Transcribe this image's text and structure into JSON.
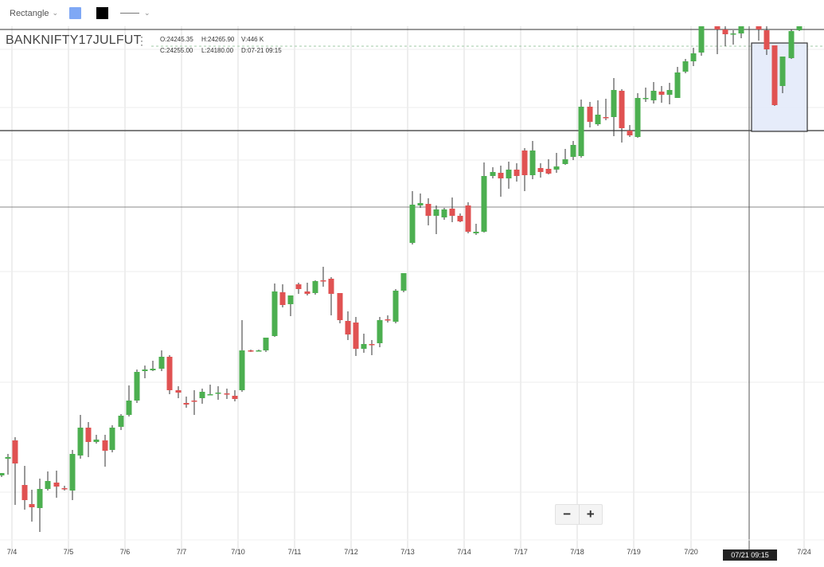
{
  "toolbar": {
    "shape_label": "Rectangle",
    "fill_color": "#7fa8f5",
    "stroke_color": "#000000"
  },
  "symbol": "BANKNIFTY17JULFUT",
  "ohlc": {
    "open": "O:24245.35",
    "high": "H:24265.90",
    "volume": "V:446 K",
    "close": "C:24255.00",
    "low": "L:24180.00",
    "date": "D:07-21 09:15"
  },
  "crosshair_time": "07/21 09:15",
  "zoom": {
    "out": "−",
    "in": "+"
  },
  "colors": {
    "up": "#4caf50",
    "down": "#e05252",
    "grid": "#dedede",
    "selection_fill": "#e3eaf9"
  },
  "chart_data": {
    "type": "candlestick",
    "symbol": "BANKNIFTY17JULFUT",
    "x_ticks": [
      "7/4",
      "7/5",
      "7/6",
      "7/7",
      "7/10",
      "7/11",
      "7/12",
      "7/13",
      "7/14",
      "7/17",
      "7/18",
      "7/19",
      "7/20",
      "7/24"
    ],
    "ohlc_last": {
      "open": 24245.35,
      "high": 24265.9,
      "low": 24180.0,
      "close": 24255.0,
      "volume": "446 K",
      "date": "07-21 09:15"
    }
  }
}
